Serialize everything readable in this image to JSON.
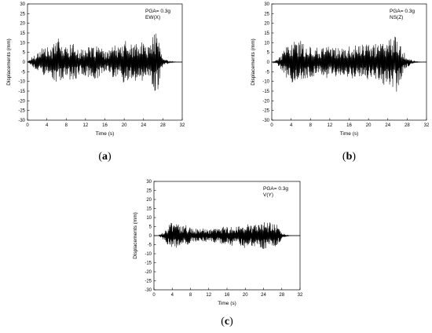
{
  "colors": {
    "line": "#000000",
    "axis": "#000000",
    "background": "#ffffff"
  },
  "chart_data": [
    {
      "type": "line",
      "panel_label": "a",
      "xlabel": "Time (s)",
      "ylabel": "Displacements (mm)",
      "xlim": [
        0,
        32
      ],
      "ylim": [
        -30,
        30
      ],
      "xticks": [
        "0",
        "4",
        "8",
        "12",
        "16",
        "20",
        "24",
        "28",
        "32"
      ],
      "yticks": [
        "30",
        "25",
        "20",
        "15",
        "10",
        "5",
        "0",
        "-5",
        "-10",
        "-15",
        "-20",
        "-25",
        "-30"
      ],
      "annotation": [
        "PGA= 0.3g",
        "EW(X)"
      ],
      "grid": false,
      "series": [
        {
          "x": [
            0,
            1,
            2,
            3,
            4,
            5,
            5.5,
            6,
            7,
            8,
            9,
            10,
            11,
            12,
            13,
            14,
            15,
            16,
            17,
            18,
            19,
            20,
            21,
            22,
            23,
            24,
            25,
            26,
            26.5,
            27,
            27.5,
            28,
            29,
            30,
            31,
            32
          ],
          "values": [
            0,
            3,
            5,
            -8,
            8,
            6,
            13,
            -14,
            9,
            8,
            -10,
            9,
            6,
            9,
            -7,
            9,
            8,
            5,
            -7,
            9,
            7,
            12,
            9,
            -10,
            9,
            11,
            -8,
            14,
            16,
            -15,
            6,
            2,
            1,
            0.3,
            0,
            0
          ]
        }
      ]
    },
    {
      "type": "line",
      "panel_label": "b",
      "xlabel": "Time (s)",
      "ylabel": "Displacements (mm)",
      "xlim": [
        0,
        32
      ],
      "ylim": [
        -30,
        30
      ],
      "xticks": [
        "0",
        "4",
        "8",
        "12",
        "16",
        "20",
        "24",
        "28",
        "32"
      ],
      "yticks": [
        "30",
        "25",
        "20",
        "15",
        "10",
        "5",
        "0",
        "-5",
        "-10",
        "-15",
        "-20",
        "-25",
        "-30"
      ],
      "annotation": [
        "PGA= 0.3g",
        "NS(Z)"
      ],
      "grid": false,
      "series": [
        {
          "x": [
            0,
            1,
            2,
            3,
            4,
            4.5,
            5,
            6,
            7,
            8,
            9,
            10,
            11,
            12,
            13,
            14,
            15,
            16,
            17,
            18,
            19,
            20,
            21,
            22,
            23,
            24,
            25,
            25.5,
            26,
            27,
            28,
            29,
            30,
            31,
            32
          ],
          "values": [
            0,
            1,
            4,
            8,
            -10,
            12,
            10,
            -11,
            9,
            8,
            -8,
            7,
            9,
            -9,
            8,
            7,
            -7,
            8,
            9,
            -8,
            10,
            9,
            -9,
            10,
            12,
            -11,
            14,
            16,
            -15,
            7,
            3,
            1,
            0.3,
            0,
            0
          ]
        }
      ]
    },
    {
      "type": "line",
      "panel_label": "c",
      "xlabel": "Time (s)",
      "ylabel": "Displacements (mm)",
      "xlim": [
        0,
        32
      ],
      "ylim": [
        -30,
        30
      ],
      "xticks": [
        "0",
        "4",
        "8",
        "12",
        "16",
        "20",
        "24",
        "28",
        "32"
      ],
      "yticks": [
        "30",
        "25",
        "20",
        "15",
        "10",
        "5",
        "0",
        "-5",
        "-10",
        "-15",
        "-20",
        "-25",
        "-30"
      ],
      "annotation": [
        "PGA= 0.3g",
        "V(Y)"
      ],
      "grid": false,
      "series": [
        {
          "x": [
            0,
            1,
            2,
            3,
            4,
            4.5,
            5,
            6,
            7,
            8,
            9,
            10,
            11,
            12,
            13,
            14,
            15,
            16,
            17,
            18,
            19,
            20,
            21,
            22,
            23,
            24,
            25,
            26,
            27,
            28,
            29,
            30,
            31,
            32
          ],
          "values": [
            0,
            0,
            2,
            5,
            8,
            -8,
            7,
            5,
            -6,
            4,
            4,
            -4,
            4,
            3,
            -4,
            4,
            5,
            -5,
            6,
            5,
            -6,
            7,
            6,
            -6,
            7,
            8,
            -7,
            9,
            6,
            2,
            0.5,
            0,
            0,
            0
          ]
        }
      ]
    }
  ]
}
